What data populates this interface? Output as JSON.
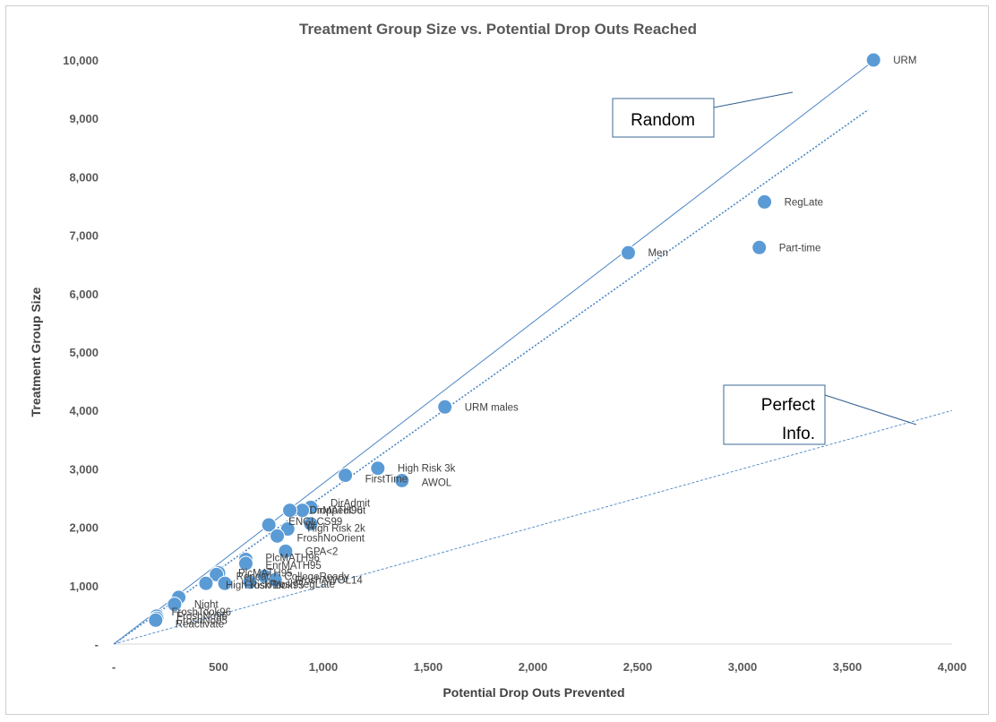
{
  "chart_data": {
    "type": "scatter",
    "title": "Treatment Group Size vs. Potential Drop Outs Reached",
    "xlabel": "Potential Drop Outs Prevented",
    "ylabel": "Treatment Group Size",
    "xlim": [
      0,
      4000
    ],
    "ylim": [
      0,
      10000
    ],
    "x_ticks": [
      "-",
      "500",
      "1,000",
      "1,500",
      "2,000",
      "2,500",
      "3,000",
      "3,500",
      "4,000"
    ],
    "y_ticks": [
      "-",
      "1,000",
      "2,000",
      "3,000",
      "4,000",
      "5,000",
      "6,000",
      "7,000",
      "8,000",
      "9,000",
      "10,000"
    ],
    "x_tick_values": [
      0,
      500,
      1000,
      1500,
      2000,
      2500,
      3000,
      3500,
      4000
    ],
    "y_tick_values": [
      0,
      1000,
      2000,
      3000,
      4000,
      5000,
      6000,
      7000,
      8000,
      9000,
      10000
    ],
    "marker_color": "#5b9bd5",
    "line_color": "#4a86c5",
    "grid": false,
    "points": [
      {
        "x": 3625,
        "y": 10000,
        "label": "URM"
      },
      {
        "x": 3105,
        "y": 7570,
        "label": "RegLate"
      },
      {
        "x": 3080,
        "y": 6790,
        "label": "Part-time"
      },
      {
        "x": 2455,
        "y": 6700,
        "label": "Men"
      },
      {
        "x": 1580,
        "y": 4060,
        "label": "URM males"
      },
      {
        "x": 1260,
        "y": 3010,
        "label": "High Risk 3k"
      },
      {
        "x": 1375,
        "y": 2800,
        "label": "AWOL"
      },
      {
        "x": 1105,
        "y": 2890,
        "label": "FirstTime"
      },
      {
        "x": 940,
        "y": 2340,
        "label": "DirAdmit"
      },
      {
        "x": 900,
        "y": 2290,
        "label": "DroppedOut"
      },
      {
        "x": 840,
        "y": 2290,
        "label": "DirMATH96"
      },
      {
        "x": 940,
        "y": 2060,
        "label": "W"
      },
      {
        "x": 740,
        "y": 2040,
        "label": "ENGLCS99"
      },
      {
        "x": 830,
        "y": 1970,
        "label": "High Risk 2k"
      },
      {
        "x": 780,
        "y": 1850,
        "label": "FroshNoOrient"
      },
      {
        "x": 820,
        "y": 1590,
        "label": "GPA<2"
      },
      {
        "x": 630,
        "y": 1450,
        "label": "PlcMATH96"
      },
      {
        "x": 630,
        "y": 1380,
        "label": "EnrMATH95"
      },
      {
        "x": 500,
        "y": 1220,
        "label": "PlcMATH95"
      },
      {
        "x": 490,
        "y": 1190,
        "label": "Repeat"
      },
      {
        "x": 720,
        "y": 1160,
        "label": "CollegeReady"
      },
      {
        "x": 770,
        "y": 1100,
        "label": "FroshAWOL14"
      },
      {
        "x": 650,
        "y": 1060,
        "label": "FroshRegLate"
      },
      {
        "x": 530,
        "y": 1040,
        "label": "FroshTook95"
      },
      {
        "x": 440,
        "y": 1040,
        "label": "High Risk 1k"
      },
      {
        "x": 310,
        "y": 800,
        "label": "FroshTook96"
      },
      {
        "x": 290,
        "y": 680,
        "label": "Night"
      },
      {
        "x": 205,
        "y": 480,
        "label": "FroshNo96"
      },
      {
        "x": 205,
        "y": 440,
        "label": "FroshNo95"
      },
      {
        "x": 200,
        "y": 410,
        "label": "Reactivate"
      }
    ],
    "reference_lines": [
      {
        "name": "Random",
        "from": [
          0,
          0
        ],
        "to": [
          3630,
          10000
        ],
        "style": "solid"
      },
      {
        "name": "Perfect Info.",
        "from": [
          0,
          0
        ],
        "to": [
          4000,
          4000
        ],
        "style": "dashed"
      },
      {
        "name": "trend",
        "from": [
          0,
          0
        ],
        "to": [
          3600,
          9150
        ],
        "style": "dotted"
      }
    ],
    "callouts": [
      {
        "label": "Random"
      },
      {
        "label": "Perfect Info."
      }
    ]
  }
}
